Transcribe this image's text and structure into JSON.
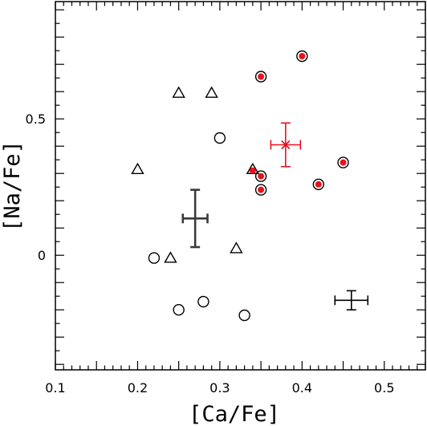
{
  "chart_data": {
    "type": "scatter",
    "xlabel": "[Ca/Fe]",
    "ylabel": "[Na/Fe]",
    "xlim": [
      0.1,
      0.55
    ],
    "ylim": [
      -0.42,
      0.93
    ],
    "xticks": [
      0.1,
      0.2,
      0.3,
      0.4,
      0.5
    ],
    "xtick_labels": [
      "0.1",
      "0.2",
      "0.3",
      "0.4",
      "0.5"
    ],
    "yticks": [
      0,
      0.5
    ],
    "ytick_labels": [
      "0",
      "0.5"
    ],
    "grid": false,
    "colors": {
      "frame": "#000000",
      "red": "#e8111c",
      "dark": "#3a3a3a"
    },
    "series": [
      {
        "marker": "open-triangle",
        "points": [
          {
            "x": 0.25,
            "y": 0.595
          },
          {
            "x": 0.29,
            "y": 0.595
          },
          {
            "x": 0.2,
            "y": 0.315
          },
          {
            "x": 0.34,
            "y": 0.315
          },
          {
            "x": 0.32,
            "y": 0.025
          },
          {
            "x": 0.24,
            "y": -0.01
          }
        ]
      },
      {
        "marker": "open-circle",
        "points": [
          {
            "x": 0.3,
            "y": 0.43
          },
          {
            "x": 0.22,
            "y": -0.01
          },
          {
            "x": 0.25,
            "y": -0.2
          },
          {
            "x": 0.28,
            "y": -0.17
          },
          {
            "x": 0.33,
            "y": -0.22
          }
        ]
      },
      {
        "marker": "circle-red-dot",
        "points": [
          {
            "x": 0.4,
            "y": 0.73
          },
          {
            "x": 0.35,
            "y": 0.655
          },
          {
            "x": 0.45,
            "y": 0.34
          },
          {
            "x": 0.35,
            "y": 0.29
          },
          {
            "x": 0.42,
            "y": 0.26
          },
          {
            "x": 0.35,
            "y": 0.24
          }
        ]
      },
      {
        "marker": "red-dot",
        "points": [
          {
            "x": 0.34,
            "y": 0.31
          }
        ]
      }
    ],
    "error_bars": [
      {
        "x": 0.38,
        "y": 0.405,
        "xerr": 0.018,
        "yerr": 0.08,
        "color": "red",
        "marker": "asterisk"
      },
      {
        "x": 0.27,
        "y": 0.135,
        "xerr": 0.015,
        "yerr": 0.105,
        "color": "dark",
        "marker": "none"
      },
      {
        "x": 0.46,
        "y": -0.165,
        "xerr": 0.02,
        "yerr": 0.035,
        "color": "black",
        "marker": "none"
      }
    ]
  }
}
